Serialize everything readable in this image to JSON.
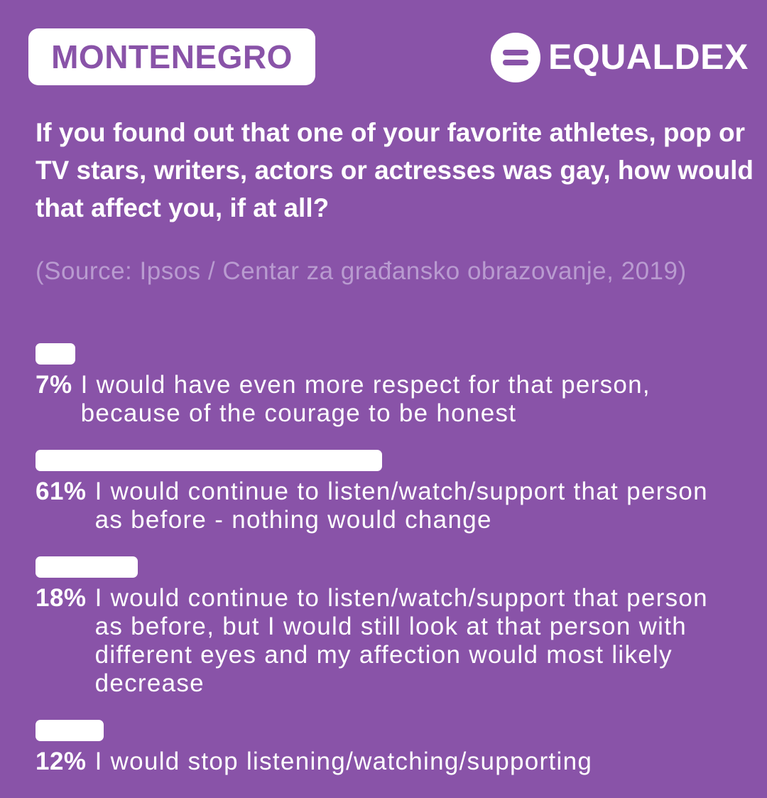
{
  "header": {
    "country": "MONTENEGRO",
    "brand": "EQUALDEX"
  },
  "chart_data": {
    "type": "bar",
    "title": "If you found out that one of your favorite athletes, pop or TV stars, writers, actors or actresses was gay, how would that affect you, if at all?",
    "subtitle": "(Source: Ipsos / Centar za građansko obrazovanje, 2019)",
    "categories": [
      "I would have even more respect for that person, because of the courage to be honest",
      "I would continue to listen/watch/support that person as before - nothing would change",
      "I would continue to listen/watch/support that person as before, but I would still look at that person with different eyes and my affection would most likely decrease",
      "I would stop listening/watching/supporting"
    ],
    "values": [
      7,
      61,
      18,
      12
    ],
    "value_labels": [
      "7%",
      "61%",
      "18%",
      "12%"
    ],
    "color": "#ffffff"
  }
}
